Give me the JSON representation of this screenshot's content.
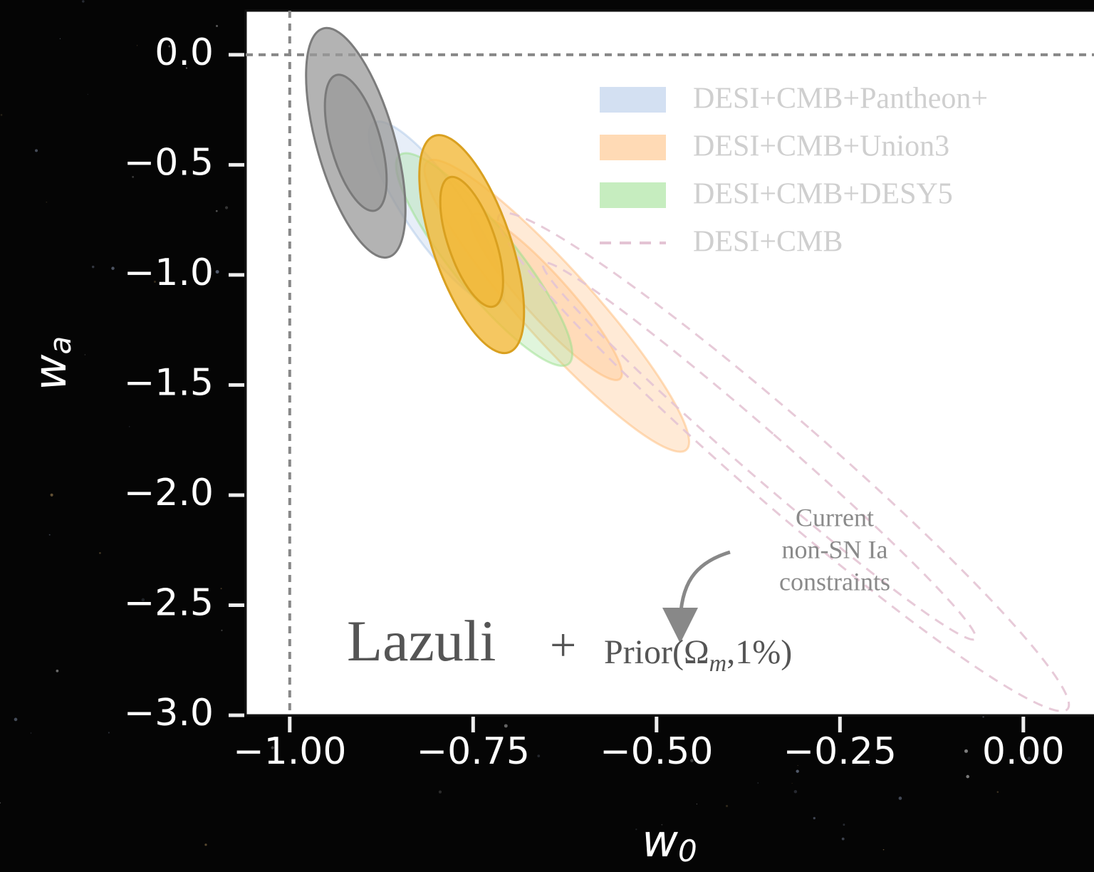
{
  "chart_data": {
    "type": "contour",
    "xlabel": {
      "base": "w",
      "sub": "0"
    },
    "ylabel": {
      "base": "w",
      "sub": "a"
    },
    "xlim": [
      -1.06,
      0.1
    ],
    "ylim": [
      -3.0,
      0.2
    ],
    "xticks": [
      {
        "value": -1.0,
        "label": "−1.00"
      },
      {
        "value": -0.75,
        "label": "−0.75"
      },
      {
        "value": -0.5,
        "label": "−0.50"
      },
      {
        "value": -0.25,
        "label": "−0.25"
      },
      {
        "value": 0.0,
        "label": "0.00"
      }
    ],
    "yticks": [
      {
        "value": 0.0,
        "label": "0.0"
      },
      {
        "value": -0.5,
        "label": "−0.5"
      },
      {
        "value": -1.0,
        "label": "−1.0"
      },
      {
        "value": -1.5,
        "label": "−1.5"
      },
      {
        "value": -2.0,
        "label": "−2.0"
      },
      {
        "value": -2.5,
        "label": "−2.5"
      },
      {
        "value": -3.0,
        "label": "−3.0"
      }
    ],
    "reference_lines": {
      "x": -1.0,
      "y": 0.0,
      "color": "#888888"
    },
    "series": [
      {
        "name": "DESI+CMB+Pantheon+",
        "color": "#aec7e8",
        "alpha": 0.3,
        "linestyle": "solid",
        "levels": [
          {
            "center": [
              -0.8,
              -0.72
            ],
            "width": 0.04,
            "height": 0.5,
            "angle": -35
          }
        ]
      },
      {
        "name": "DESI+CMB+Union3",
        "color": "#ffbb78",
        "alpha": 0.3,
        "linestyle": "solid",
        "levels": [
          {
            "center": [
              -0.636,
              -1.14
            ],
            "width": 0.049,
            "height": 0.88,
            "angle": -42
          },
          {
            "center": [
              -0.65,
              -1.1
            ],
            "width": 0.03,
            "height": 0.5,
            "angle": -42
          }
        ]
      },
      {
        "name": "DESI+CMB+DESY5",
        "color": "#98df8a",
        "alpha": 0.3,
        "linestyle": "solid",
        "levels": [
          {
            "center": [
              -0.735,
              -0.93
            ],
            "width": 0.044,
            "height": 0.61,
            "angle": -39
          }
        ]
      },
      {
        "name": "DESI+CMB",
        "color": "#e4c4d4",
        "alpha": 0.0,
        "linestyle": "dashed",
        "levels": [
          {
            "center": [
              -0.327,
              -1.85
            ],
            "width": 0.058,
            "height": 1.71,
            "angle": -49
          },
          {
            "center": [
              -0.36,
              -1.8
            ],
            "width": 0.03,
            "height": 1.3,
            "angle": -49
          }
        ]
      }
    ],
    "lazuli_series": [
      {
        "color": "#9a9a9a",
        "edgecolor": "#777777",
        "alpha": 0.75,
        "linestyle": "solid",
        "levels": [
          {
            "center": [
              -0.91,
              -0.4
            ],
            "width": 0.053,
            "height": 0.54,
            "angle": -16
          },
          {
            "center": [
              -0.91,
              -0.4
            ],
            "width": 0.034,
            "height": 0.32,
            "angle": -16
          }
        ]
      },
      {
        "color": "#f2b93a",
        "edgecolor": "#d9a020",
        "alpha": 0.8,
        "linestyle": "solid",
        "levels": [
          {
            "center": [
              -0.752,
              -0.86
            ],
            "width": 0.053,
            "height": 0.52,
            "angle": -19
          },
          {
            "center": [
              -0.752,
              -0.85
            ],
            "width": 0.032,
            "height": 0.31,
            "angle": -19
          }
        ]
      }
    ],
    "annotation": [
      "Current",
      "non-SN Ia",
      "constraints"
    ],
    "label": {
      "main": "Lazuli",
      "plus": "+",
      "prior_start": "Prior(Ω",
      "prior_sub": "m",
      "prior_end": ",1%)"
    }
  }
}
